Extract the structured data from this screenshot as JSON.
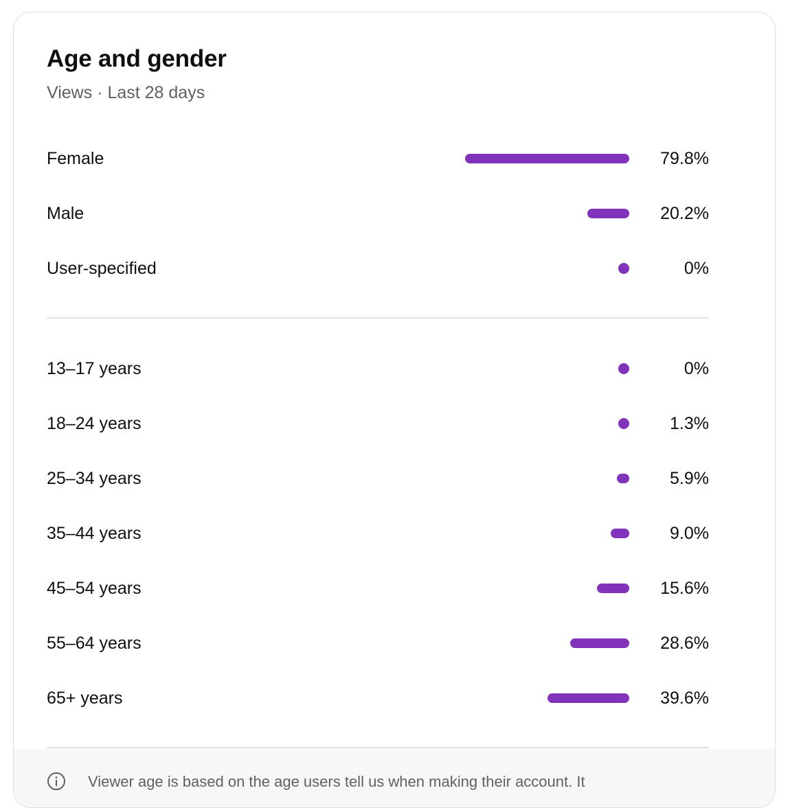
{
  "card": {
    "title": "Age and gender",
    "subtitle": "Views · Last 28 days"
  },
  "chart_data": [
    {
      "type": "bar",
      "categories": [
        "Female",
        "Male",
        "User-specified"
      ],
      "values": [
        79.8,
        20.2,
        0
      ],
      "value_labels": [
        "79.8%",
        "20.2%",
        "0%"
      ],
      "unit": "%",
      "color": "#8233bb"
    },
    {
      "type": "bar",
      "categories": [
        "13–17 years",
        "18–24 years",
        "25–34 years",
        "35–44 years",
        "45–54 years",
        "55–64 years",
        "65+ years"
      ],
      "values": [
        0,
        1.3,
        5.9,
        9.0,
        15.6,
        28.6,
        39.6
      ],
      "value_labels": [
        "0%",
        "1.3%",
        "5.9%",
        "9.0%",
        "15.6%",
        "28.6%",
        "39.6%"
      ],
      "unit": "%",
      "color": "#8233bb"
    }
  ],
  "footer": {
    "icon": "info-icon",
    "note": "Viewer age is based on the age users tell us when making their account. It"
  }
}
